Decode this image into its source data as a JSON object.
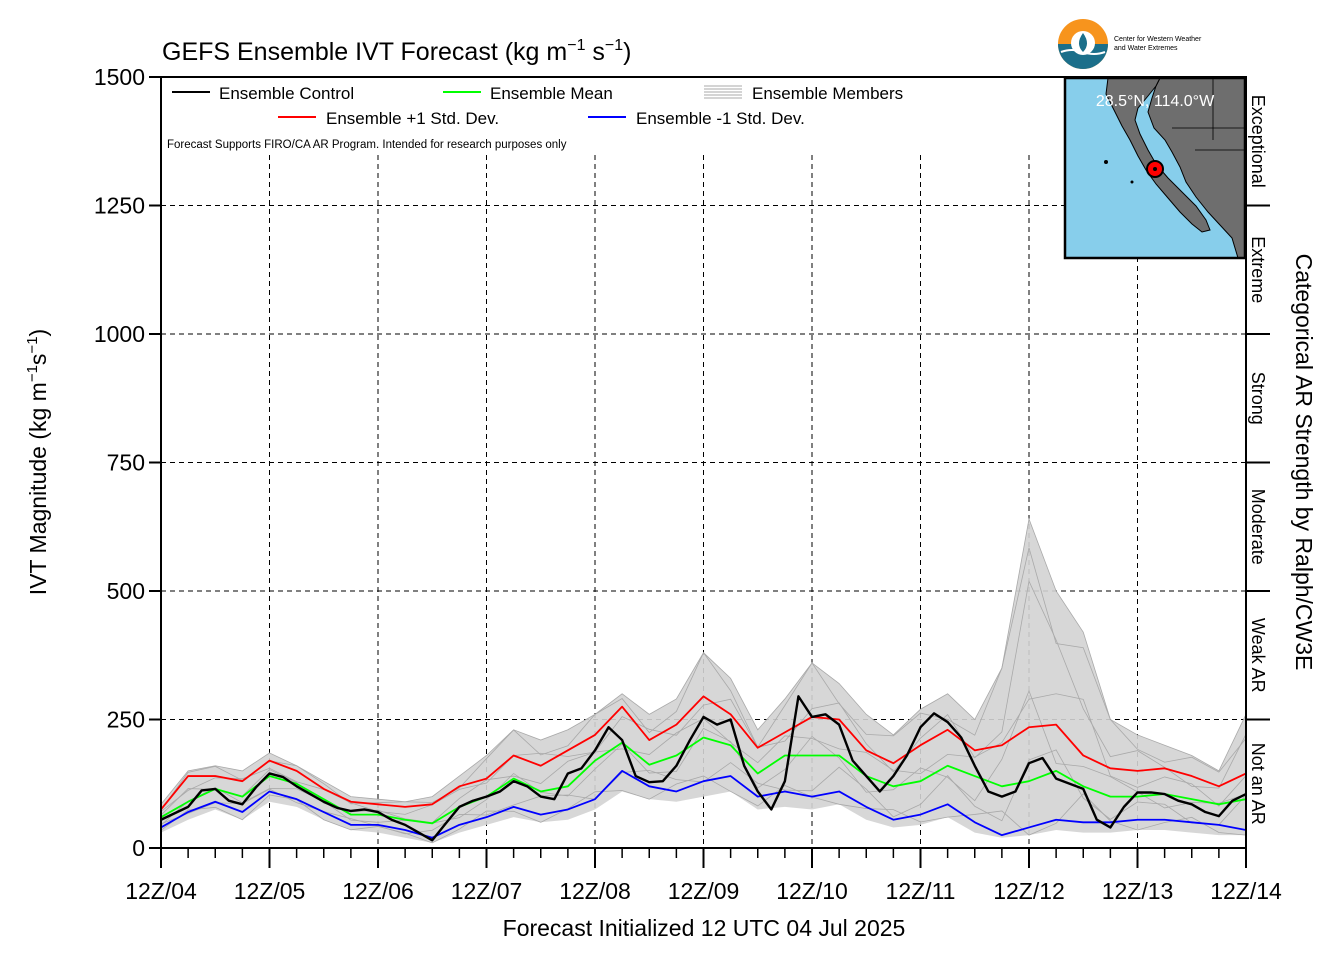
{
  "header": {
    "title": "GEFS Ensemble IVT Forecast (kg m",
    "title_exp1": "−1",
    "title_mid": " s",
    "title_exp2": "−1",
    "title_end": ")"
  },
  "logo": {
    "line1": "Center for Western Weather",
    "line2": "and Water Extremes"
  },
  "legend": {
    "control": "Ensemble Control",
    "mean": "Ensemble Mean",
    "members": "Ensemble Members",
    "plus_std": "Ensemble +1 Std. Dev.",
    "minus_std": "Ensemble -1 Std. Dev.",
    "note": "Forecast Supports FIRO/CA AR Program. Intended for research purposes only"
  },
  "inset_map": {
    "location_label": "28.5°N, 114.0°W"
  },
  "axes": {
    "ylabel": "IVT Magnitude (kg m",
    "ylabel_exp1": "−1",
    "ylabel_mid": "s",
    "ylabel_exp2": "−1",
    "ylabel_end": ")",
    "xlabel": "Forecast Initialized 12 UTC 04 Jul 2025",
    "right_label": "Categorical AR Strength by Ralph/CW3E"
  },
  "chart_data": {
    "type": "line",
    "title": "GEFS Ensemble IVT Forecast (kg m−1 s−1)",
    "xlabel": "Forecast Initialized 12 UTC 04 Jul 2025",
    "ylabel": "IVT Magnitude (kg m−1 s−1)",
    "ylim": [
      0,
      1500
    ],
    "yticks": [
      0,
      250,
      500,
      750,
      1000,
      1250,
      1500
    ],
    "xlim": [
      0,
      240
    ],
    "x_unit": "forecast hours",
    "xtick_hours": [
      0,
      24,
      48,
      72,
      96,
      120,
      144,
      168,
      192,
      216,
      240
    ],
    "xtick_labels": [
      "12Z/04",
      "12Z/05",
      "12Z/06",
      "12Z/07",
      "12Z/08",
      "12Z/09",
      "12Z/10",
      "12Z/11",
      "12Z/12",
      "12Z/13",
      "12Z/14"
    ],
    "grid": true,
    "legend_placement": "top-left",
    "categories_right": [
      {
        "label": "Not an AR",
        "range": [
          0,
          250
        ]
      },
      {
        "label": "Weak AR",
        "range": [
          250,
          500
        ]
      },
      {
        "label": "Moderate",
        "range": [
          500,
          750
        ]
      },
      {
        "label": "Strong",
        "range": [
          750,
          1000
        ]
      },
      {
        "label": "Extreme",
        "range": [
          1000,
          1250
        ]
      },
      {
        "label": "Exceptional",
        "range": [
          1250,
          1500
        ]
      }
    ],
    "series": [
      {
        "name": "Ensemble Control",
        "color": "#000000",
        "points": [
          [
            0,
            55
          ],
          [
            6,
            80
          ],
          [
            9,
            112
          ],
          [
            12,
            115
          ],
          [
            15,
            92
          ],
          [
            18,
            85
          ],
          [
            21,
            118
          ],
          [
            24,
            145
          ],
          [
            27,
            138
          ],
          [
            30,
            120
          ],
          [
            33,
            105
          ],
          [
            36,
            90
          ],
          [
            39,
            78
          ],
          [
            42,
            72
          ],
          [
            45,
            75
          ],
          [
            48,
            70
          ],
          [
            51,
            55
          ],
          [
            54,
            45
          ],
          [
            57,
            30
          ],
          [
            60,
            15
          ],
          [
            63,
            48
          ],
          [
            66,
            80
          ],
          [
            69,
            92
          ],
          [
            72,
            100
          ],
          [
            75,
            110
          ],
          [
            78,
            130
          ],
          [
            81,
            120
          ],
          [
            84,
            100
          ],
          [
            87,
            95
          ],
          [
            90,
            145
          ],
          [
            93,
            155
          ],
          [
            96,
            190
          ],
          [
            99,
            235
          ],
          [
            102,
            210
          ],
          [
            105,
            140
          ],
          [
            108,
            128
          ],
          [
            111,
            130
          ],
          [
            114,
            160
          ],
          [
            117,
            210
          ],
          [
            120,
            255
          ],
          [
            123,
            240
          ],
          [
            126,
            250
          ],
          [
            129,
            160
          ],
          [
            132,
            110
          ],
          [
            135,
            75
          ],
          [
            138,
            130
          ],
          [
            141,
            295
          ],
          [
            144,
            255
          ],
          [
            147,
            260
          ],
          [
            150,
            240
          ],
          [
            153,
            170
          ],
          [
            156,
            140
          ],
          [
            159,
            110
          ],
          [
            162,
            140
          ],
          [
            165,
            180
          ],
          [
            168,
            235
          ],
          [
            171,
            262
          ],
          [
            174,
            245
          ],
          [
            177,
            215
          ],
          [
            180,
            160
          ],
          [
            183,
            110
          ],
          [
            186,
            100
          ],
          [
            189,
            110
          ],
          [
            192,
            165
          ],
          [
            195,
            175
          ],
          [
            198,
            135
          ],
          [
            201,
            125
          ],
          [
            204,
            115
          ],
          [
            207,
            55
          ],
          [
            210,
            40
          ],
          [
            213,
            80
          ],
          [
            216,
            108
          ],
          [
            219,
            108
          ],
          [
            222,
            105
          ],
          [
            225,
            92
          ],
          [
            228,
            85
          ],
          [
            231,
            70
          ],
          [
            234,
            62
          ],
          [
            237,
            92
          ],
          [
            240,
            105
          ]
        ]
      },
      {
        "name": "Ensemble Mean",
        "color": "#00ff00",
        "points": [
          [
            0,
            60
          ],
          [
            6,
            90
          ],
          [
            12,
            115
          ],
          [
            18,
            100
          ],
          [
            24,
            140
          ],
          [
            30,
            125
          ],
          [
            36,
            95
          ],
          [
            42,
            65
          ],
          [
            48,
            65
          ],
          [
            54,
            55
          ],
          [
            60,
            48
          ],
          [
            66,
            80
          ],
          [
            72,
            100
          ],
          [
            78,
            135
          ],
          [
            84,
            110
          ],
          [
            90,
            120
          ],
          [
            96,
            170
          ],
          [
            102,
            205
          ],
          [
            108,
            162
          ],
          [
            114,
            180
          ],
          [
            120,
            215
          ],
          [
            126,
            200
          ],
          [
            132,
            145
          ],
          [
            138,
            180
          ],
          [
            144,
            180
          ],
          [
            150,
            180
          ],
          [
            156,
            140
          ],
          [
            162,
            120
          ],
          [
            168,
            130
          ],
          [
            174,
            160
          ],
          [
            180,
            140
          ],
          [
            186,
            120
          ],
          [
            192,
            130
          ],
          [
            198,
            150
          ],
          [
            204,
            120
          ],
          [
            210,
            100
          ],
          [
            216,
            100
          ],
          [
            222,
            105
          ],
          [
            228,
            95
          ],
          [
            234,
            85
          ],
          [
            240,
            95
          ]
        ]
      },
      {
        "name": "Ensemble +1 Std. Dev.",
        "color": "#ff0000",
        "points": [
          [
            0,
            75
          ],
          [
            6,
            140
          ],
          [
            12,
            140
          ],
          [
            18,
            130
          ],
          [
            24,
            170
          ],
          [
            30,
            150
          ],
          [
            36,
            115
          ],
          [
            42,
            90
          ],
          [
            48,
            85
          ],
          [
            54,
            80
          ],
          [
            60,
            85
          ],
          [
            66,
            120
          ],
          [
            72,
            135
          ],
          [
            78,
            180
          ],
          [
            84,
            160
          ],
          [
            90,
            190
          ],
          [
            96,
            220
          ],
          [
            102,
            275
          ],
          [
            108,
            210
          ],
          [
            114,
            240
          ],
          [
            120,
            295
          ],
          [
            126,
            260
          ],
          [
            132,
            195
          ],
          [
            138,
            225
          ],
          [
            144,
            255
          ],
          [
            150,
            250
          ],
          [
            156,
            190
          ],
          [
            162,
            165
          ],
          [
            168,
            200
          ],
          [
            174,
            230
          ],
          [
            180,
            190
          ],
          [
            186,
            200
          ],
          [
            192,
            235
          ],
          [
            198,
            240
          ],
          [
            204,
            180
          ],
          [
            210,
            155
          ],
          [
            216,
            150
          ],
          [
            222,
            155
          ],
          [
            228,
            140
          ],
          [
            234,
            120
          ],
          [
            240,
            145
          ]
        ]
      },
      {
        "name": "Ensemble -1 Std. Dev.",
        "color": "#0000ff",
        "points": [
          [
            0,
            40
          ],
          [
            6,
            70
          ],
          [
            12,
            90
          ],
          [
            18,
            70
          ],
          [
            24,
            110
          ],
          [
            30,
            95
          ],
          [
            36,
            70
          ],
          [
            42,
            45
          ],
          [
            48,
            45
          ],
          [
            54,
            35
          ],
          [
            60,
            20
          ],
          [
            66,
            45
          ],
          [
            72,
            60
          ],
          [
            78,
            80
          ],
          [
            84,
            65
          ],
          [
            90,
            75
          ],
          [
            96,
            95
          ],
          [
            102,
            150
          ],
          [
            108,
            120
          ],
          [
            114,
            110
          ],
          [
            120,
            130
          ],
          [
            126,
            140
          ],
          [
            132,
            100
          ],
          [
            138,
            110
          ],
          [
            144,
            100
          ],
          [
            150,
            110
          ],
          [
            156,
            80
          ],
          [
            162,
            55
          ],
          [
            168,
            65
          ],
          [
            174,
            85
          ],
          [
            180,
            50
          ],
          [
            186,
            25
          ],
          [
            192,
            40
          ],
          [
            198,
            55
          ],
          [
            204,
            50
          ],
          [
            210,
            50
          ],
          [
            216,
            55
          ],
          [
            222,
            55
          ],
          [
            228,
            50
          ],
          [
            234,
            45
          ],
          [
            240,
            35
          ]
        ]
      }
    ],
    "member_envelope": {
      "name": "Ensemble Members",
      "upper_points": [
        [
          0,
          85
        ],
        [
          6,
          150
        ],
        [
          12,
          160
        ],
        [
          18,
          150
        ],
        [
          24,
          185
        ],
        [
          30,
          160
        ],
        [
          36,
          130
        ],
        [
          42,
          100
        ],
        [
          48,
          95
        ],
        [
          54,
          90
        ],
        [
          60,
          100
        ],
        [
          66,
          140
        ],
        [
          72,
          180
        ],
        [
          78,
          230
        ],
        [
          84,
          210
        ],
        [
          90,
          230
        ],
        [
          96,
          260
        ],
        [
          102,
          300
        ],
        [
          108,
          260
        ],
        [
          114,
          290
        ],
        [
          120,
          380
        ],
        [
          126,
          330
        ],
        [
          132,
          230
        ],
        [
          138,
          290
        ],
        [
          144,
          360
        ],
        [
          150,
          320
        ],
        [
          156,
          260
        ],
        [
          162,
          220
        ],
        [
          168,
          270
        ],
        [
          174,
          300
        ],
        [
          180,
          250
        ],
        [
          186,
          350
        ],
        [
          192,
          640
        ],
        [
          198,
          500
        ],
        [
          204,
          420
        ],
        [
          210,
          250
        ],
        [
          216,
          220
        ],
        [
          222,
          200
        ],
        [
          228,
          180
        ],
        [
          234,
          150
        ],
        [
          240,
          260
        ]
      ],
      "lower_points": [
        [
          0,
          30
        ],
        [
          6,
          55
        ],
        [
          12,
          75
        ],
        [
          18,
          55
        ],
        [
          24,
          90
        ],
        [
          30,
          80
        ],
        [
          36,
          55
        ],
        [
          42,
          35
        ],
        [
          48,
          30
        ],
        [
          54,
          20
        ],
        [
          60,
          10
        ],
        [
          66,
          30
        ],
        [
          72,
          45
        ],
        [
          78,
          60
        ],
        [
          84,
          50
        ],
        [
          90,
          55
        ],
        [
          96,
          75
        ],
        [
          102,
          110
        ],
        [
          108,
          95
        ],
        [
          114,
          90
        ],
        [
          120,
          100
        ],
        [
          126,
          110
        ],
        [
          132,
          75
        ],
        [
          138,
          80
        ],
        [
          144,
          75
        ],
        [
          150,
          85
        ],
        [
          156,
          55
        ],
        [
          162,
          40
        ],
        [
          168,
          45
        ],
        [
          174,
          60
        ],
        [
          180,
          30
        ],
        [
          186,
          20
        ],
        [
          192,
          25
        ],
        [
          198,
          35
        ],
        [
          204,
          30
        ],
        [
          210,
          30
        ],
        [
          216,
          35
        ],
        [
          222,
          35
        ],
        [
          228,
          30
        ],
        [
          234,
          25
        ],
        [
          240,
          25
        ]
      ]
    }
  },
  "colors": {
    "map_water": "#87ceeb",
    "map_land": "#6e6e6e",
    "envelope_fill": "#d3d3d3",
    "member_line": "#a9a9a9",
    "logo_orange": "#f7941d",
    "logo_teal": "#1b6f8a"
  }
}
